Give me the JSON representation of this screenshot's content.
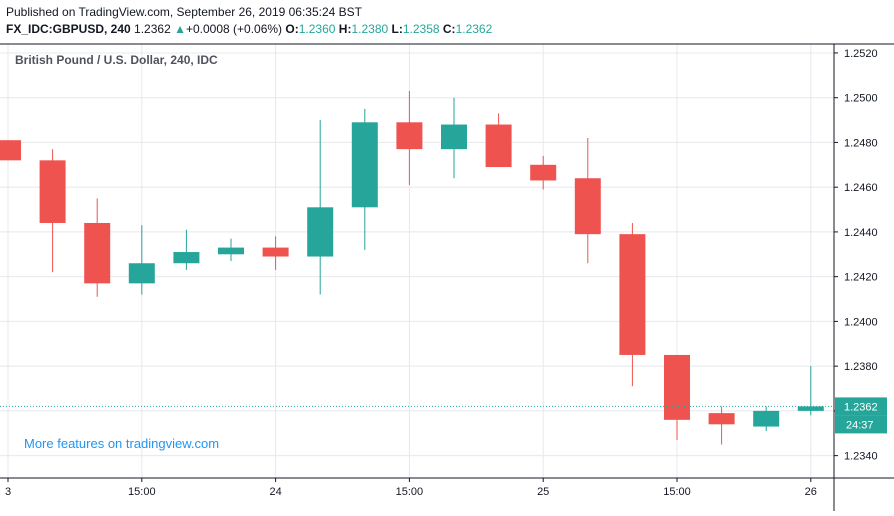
{
  "header": {
    "published": "Published on TradingView.com, September 26, 2019 06:35:24 BST",
    "symbol": "FX_IDC:GBPUSD, 240",
    "last": "1.2362",
    "change": "+0.0008 (+0.06%)",
    "o_label": "O:",
    "o_value": "1.2360",
    "h_label": "H:",
    "h_value": "1.2380",
    "l_label": "L:",
    "l_value": "1.2358",
    "c_label": "C:",
    "c_value": "1.2362"
  },
  "legend": {
    "title": "British Pound / U.S. Dollar, 240, IDC"
  },
  "watermark": "More features on tradingview.com",
  "price_label": {
    "price": "1.2362",
    "countdown": "24:37"
  },
  "colors": {
    "up": "#26a69a",
    "down": "#ef5350",
    "grid": "#e6e8ed",
    "axis": "#131722",
    "line": "#26a69a"
  },
  "chart_data": {
    "type": "candlestick",
    "ylim": [
      1.233,
      1.2524
    ],
    "yticks": [
      1.234,
      1.236,
      1.238,
      1.24,
      1.242,
      1.244,
      1.246,
      1.248,
      1.25,
      1.252
    ],
    "ytick_labels": [
      "1.2340",
      "1.2360",
      "1.2380",
      "1.2400",
      "1.2420",
      "1.2440",
      "1.2460",
      "1.2480",
      "1.2500",
      "1.2520"
    ],
    "xticks": [
      "3",
      "15:00",
      "24",
      "15:00",
      "25",
      "15:00",
      "26"
    ],
    "xtick_bar_index": [
      0,
      3,
      6,
      9,
      12,
      15,
      18
    ],
    "last_price": 1.2362,
    "candles": [
      {
        "o": 1.2481,
        "h": 1.2481,
        "l": 1.2472,
        "c": 1.2472
      },
      {
        "o": 1.2472,
        "h": 1.2477,
        "l": 1.2422,
        "c": 1.2444
      },
      {
        "o": 1.2444,
        "h": 1.2455,
        "l": 1.2411,
        "c": 1.2417
      },
      {
        "o": 1.2417,
        "h": 1.2443,
        "l": 1.2412,
        "c": 1.2426
      },
      {
        "o": 1.2426,
        "h": 1.2441,
        "l": 1.2423,
        "c": 1.2431
      },
      {
        "o": 1.243,
        "h": 1.2437,
        "l": 1.2427,
        "c": 1.2433
      },
      {
        "o": 1.2433,
        "h": 1.2438,
        "l": 1.2423,
        "c": 1.2429
      },
      {
        "o": 1.2429,
        "h": 1.249,
        "l": 1.2412,
        "c": 1.2451
      },
      {
        "o": 1.2451,
        "h": 1.2495,
        "l": 1.2432,
        "c": 1.2489
      },
      {
        "o": 1.2489,
        "h": 1.2503,
        "l": 1.2461,
        "c": 1.2477
      },
      {
        "o": 1.2477,
        "h": 1.25,
        "l": 1.2464,
        "c": 1.2488
      },
      {
        "o": 1.2488,
        "h": 1.2493,
        "l": 1.2469,
        "c": 1.2469
      },
      {
        "o": 1.247,
        "h": 1.2474,
        "l": 1.2459,
        "c": 1.2463
      },
      {
        "o": 1.2464,
        "h": 1.2482,
        "l": 1.2426,
        "c": 1.2439
      },
      {
        "o": 1.2439,
        "h": 1.2444,
        "l": 1.2371,
        "c": 1.2385
      },
      {
        "o": 1.2385,
        "h": 1.2385,
        "l": 1.2347,
        "c": 1.2356
      },
      {
        "o": 1.2359,
        "h": 1.2362,
        "l": 1.2345,
        "c": 1.2354
      },
      {
        "o": 1.2353,
        "h": 1.2362,
        "l": 1.2351,
        "c": 1.236
      },
      {
        "o": 1.236,
        "h": 1.238,
        "l": 1.2358,
        "c": 1.2362
      }
    ]
  }
}
